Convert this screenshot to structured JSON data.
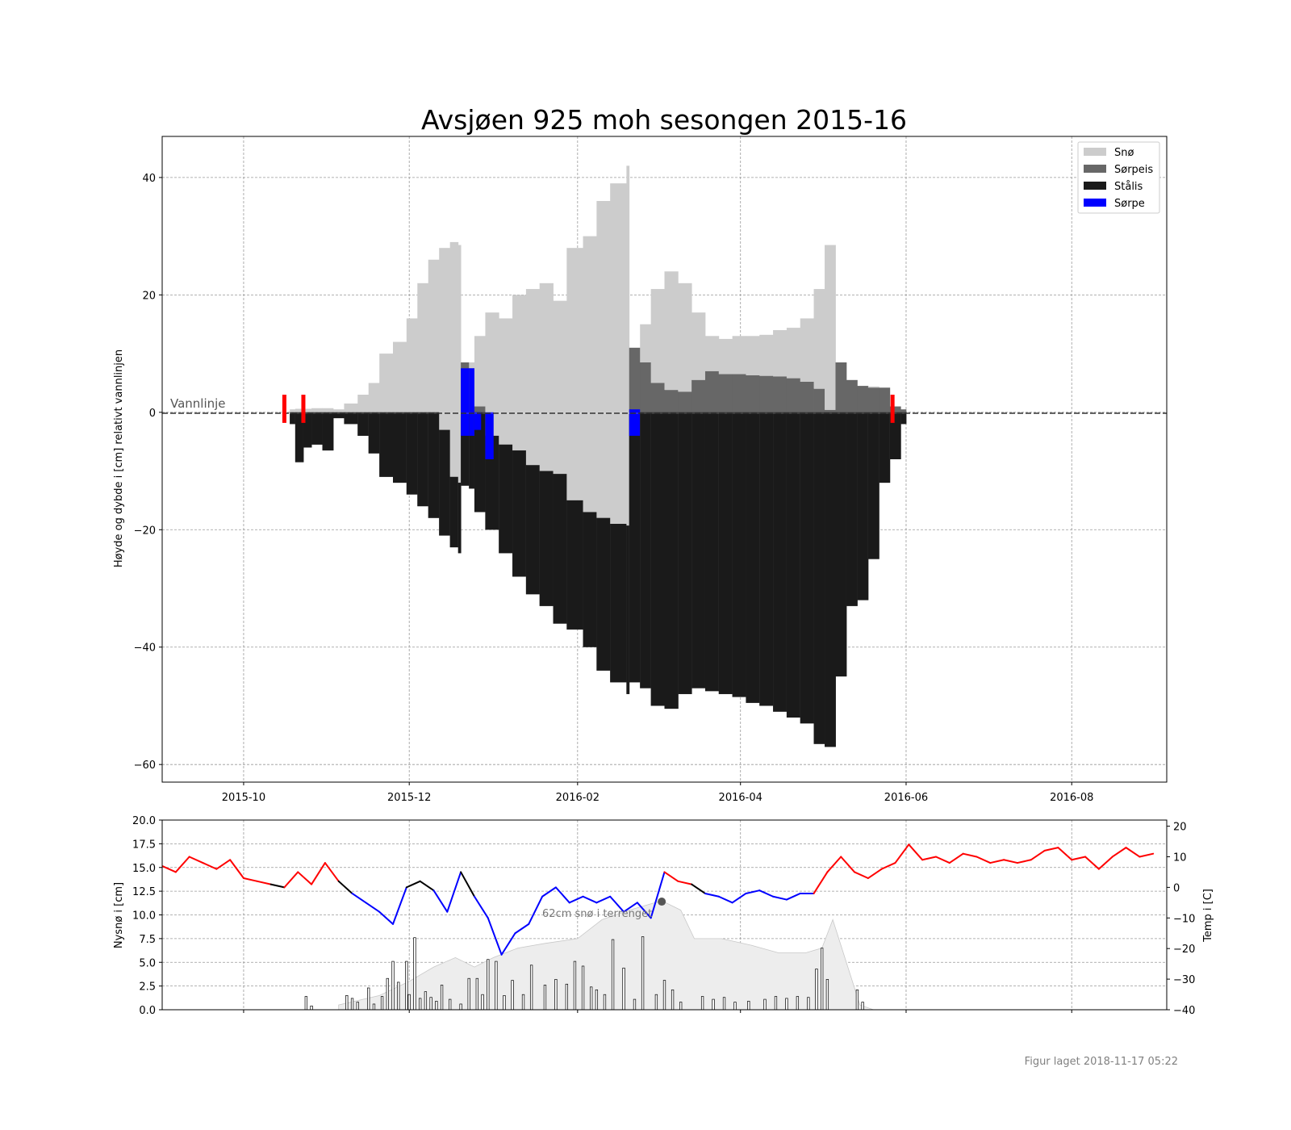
{
  "footer": "Figur laget 2018-11-17 05:22",
  "chart_data": [
    {
      "type": "area",
      "title": "Avsjøen 925 moh sesongen 2015-16",
      "ylabel": "Høyde og dybde i [cm] relativt vannlinjen",
      "xlim": [
        "2015-09-01",
        "2016-09-05"
      ],
      "ylim": [
        -63,
        47
      ],
      "x_ticks": [
        "2015-10",
        "2015-12",
        "2016-02",
        "2016-04",
        "2016-06",
        "2016-08"
      ],
      "y_ticks": [
        40,
        20,
        0,
        -20,
        -40,
        -60
      ],
      "grid": true,
      "legend_placement": "top-right",
      "annotation": "Vannlinje",
      "colors": {
        "sno": "#cccccc",
        "sorpeis": "#676767",
        "stalis": "#1a1a1a",
        "sorpe": "#0000ff",
        "markers": "#ff0000"
      },
      "legend": [
        "Snø",
        "Sørpeis",
        "Stålis",
        "Sørpe"
      ],
      "ice_markers": [
        "2015-10-16",
        "2015-10-23",
        "2016-05-27"
      ],
      "x": [
        "2015-10-18",
        "2015-10-20",
        "2015-10-23",
        "2015-10-26",
        "2015-10-30",
        "2015-11-03",
        "2015-11-07",
        "2015-11-12",
        "2015-11-16",
        "2015-11-20",
        "2015-11-25",
        "2015-11-30",
        "2015-12-04",
        "2015-12-08",
        "2015-12-12",
        "2015-12-16",
        "2015-12-19",
        "2015-12-20",
        "2015-12-23",
        "2015-12-25",
        "2015-12-29",
        "2016-01-03",
        "2016-01-08",
        "2016-01-13",
        "2016-01-18",
        "2016-01-23",
        "2016-01-28",
        "2016-02-03",
        "2016-02-08",
        "2016-02-13",
        "2016-02-19",
        "2016-02-20",
        "2016-02-24",
        "2016-02-28",
        "2016-03-04",
        "2016-03-09",
        "2016-03-14",
        "2016-03-19",
        "2016-03-24",
        "2016-03-29",
        "2016-04-03",
        "2016-04-08",
        "2016-04-13",
        "2016-04-18",
        "2016-04-23",
        "2016-04-28",
        "2016-05-02",
        "2016-05-06",
        "2016-05-10",
        "2016-05-14",
        "2016-05-18",
        "2016-05-22",
        "2016-05-26",
        "2016-05-30",
        "2016-06-01"
      ],
      "series": [
        {
          "name": "Snø",
          "values": [
            0.5,
            0.6,
            0.6,
            0.7,
            0.7,
            0.5,
            1.5,
            3,
            5,
            10,
            12,
            16,
            22,
            26,
            28,
            29,
            28.5,
            8,
            8.5,
            13,
            17,
            16,
            20,
            21,
            22,
            19,
            28,
            30,
            36,
            39,
            42,
            10.5,
            15,
            21,
            24,
            22,
            17,
            13,
            12.5,
            13,
            13,
            13.2,
            14,
            14.4,
            16,
            21,
            28.5,
            0.2,
            3,
            4.5,
            4.4,
            4.2,
            1,
            0.5,
            0
          ]
        },
        {
          "name": "Sørpeis",
          "values": [
            0,
            0,
            0,
            0,
            0,
            0,
            0,
            0,
            0,
            0,
            0,
            0,
            0,
            0,
            -3,
            -11,
            -12,
            8.5,
            7.5,
            1,
            -4,
            -5.5,
            -6.5,
            -9,
            -10,
            -10.5,
            -15,
            -17,
            -18,
            -19,
            -19.3,
            11,
            8.5,
            5,
            3.8,
            3.5,
            5.5,
            7,
            6.5,
            6.5,
            6.3,
            6.2,
            6.1,
            5.8,
            5.2,
            4,
            0.4,
            8.5,
            5.5,
            4.5,
            4.2,
            4.2,
            1,
            0.5,
            0
          ]
        },
        {
          "name": "Stålis",
          "values": [
            -2,
            -8.5,
            -6,
            -5.5,
            -6.5,
            -1,
            -2,
            -4,
            -7,
            -11,
            -12,
            -14,
            -16,
            -18,
            -21,
            -23,
            -24,
            -12.5,
            -13,
            -17,
            -20,
            -24,
            -28,
            -31,
            -33,
            -36,
            -37,
            -40,
            -44,
            -46,
            -48,
            -46,
            -47,
            -50,
            -50.5,
            -48,
            -47,
            -47.5,
            -48,
            -48.5,
            -49.5,
            -50,
            -51,
            -52,
            -53,
            -56.5,
            -57,
            -45,
            -33,
            -32,
            -25,
            -12,
            -8,
            -2,
            0
          ]
        },
        {
          "name": "Sørpe",
          "values": [
            0,
            0,
            0,
            0,
            0,
            0,
            0,
            0,
            0,
            0,
            0,
            0,
            0,
            0,
            0,
            0,
            0,
            7.5,
            7.5,
            -3,
            -8,
            0,
            0,
            0,
            0,
            0,
            0,
            0,
            0,
            0,
            0,
            0.5,
            0,
            0,
            0,
            0,
            0,
            0,
            0,
            0,
            0,
            0,
            0,
            0,
            0,
            0,
            0,
            0,
            0,
            0,
            0,
            0,
            0,
            0,
            0
          ]
        }
      ]
    },
    {
      "type": "bar",
      "ylabel": "Nysnø i [cm]",
      "y2label": "Temp i [C]",
      "ylim": [
        0,
        20
      ],
      "y2lim": [
        -40,
        22
      ],
      "y_ticks": [
        0.0,
        2.5,
        5.0,
        7.5,
        10.0,
        12.5,
        15.0,
        17.5,
        20.0
      ],
      "y2_ticks": [
        20,
        10,
        0,
        -10,
        -20,
        -30,
        -40
      ],
      "annotation": "62cm snø i terrenget",
      "annotation_date": "2016-03-03",
      "colors": {
        "warm": "#ff0000",
        "cold": "#0000ff",
        "neutral": "#000000",
        "snow_depth": "#ededed"
      },
      "temperature": {
        "x": [
          "2015-09-01",
          "2015-09-06",
          "2015-09-11",
          "2015-09-16",
          "2015-09-21",
          "2015-09-26",
          "2015-10-01",
          "2015-10-06",
          "2015-10-11",
          "2015-10-16",
          "2015-10-21",
          "2015-10-26",
          "2015-10-31",
          "2015-11-05",
          "2015-11-10",
          "2015-11-15",
          "2015-11-20",
          "2015-11-25",
          "2015-11-30",
          "2015-12-05",
          "2015-12-10",
          "2015-12-15",
          "2015-12-20",
          "2015-12-25",
          "2015-12-30",
          "2016-01-04",
          "2016-01-09",
          "2016-01-14",
          "2016-01-19",
          "2016-01-24",
          "2016-01-29",
          "2016-02-03",
          "2016-02-08",
          "2016-02-13",
          "2016-02-18",
          "2016-02-23",
          "2016-02-28",
          "2016-03-04",
          "2016-03-09",
          "2016-03-14",
          "2016-03-19",
          "2016-03-24",
          "2016-03-29",
          "2016-04-03",
          "2016-04-08",
          "2016-04-13",
          "2016-04-18",
          "2016-04-23",
          "2016-04-28",
          "2016-05-03",
          "2016-05-08",
          "2016-05-13",
          "2016-05-18",
          "2016-05-23",
          "2016-05-28",
          "2016-06-02",
          "2016-06-07",
          "2016-06-12",
          "2016-06-17",
          "2016-06-22",
          "2016-06-27",
          "2016-07-02",
          "2016-07-07",
          "2016-07-12",
          "2016-07-17",
          "2016-07-22",
          "2016-07-27",
          "2016-08-01",
          "2016-08-06",
          "2016-08-11",
          "2016-08-16",
          "2016-08-21",
          "2016-08-26",
          "2016-08-31"
        ],
        "values": [
          7,
          5,
          10,
          8,
          6,
          9,
          3,
          2,
          1,
          0,
          5,
          1,
          8,
          2,
          -2,
          -5,
          -8,
          -12,
          0,
          2,
          -1,
          -8,
          5,
          -3,
          -10,
          -22,
          -15,
          -12,
          -3,
          0,
          -5,
          -3,
          -5,
          -3,
          -8,
          -5,
          -10,
          5,
          2,
          1,
          -2,
          -3,
          -5,
          -2,
          -1,
          -3,
          -4,
          -2,
          -2,
          5,
          10,
          5,
          3,
          6,
          8,
          14,
          9,
          10,
          8,
          11,
          10,
          8,
          9,
          8,
          9,
          12,
          13,
          9,
          10,
          6,
          10,
          13,
          10,
          11
        ]
      },
      "snowfall": {
        "x": [
          "2015-10-24",
          "2015-10-26",
          "2015-11-08",
          "2015-11-10",
          "2015-11-12",
          "2015-11-16",
          "2015-11-18",
          "2015-11-21",
          "2015-11-23",
          "2015-11-25",
          "2015-11-27",
          "2015-11-30",
          "2015-12-01",
          "2015-12-03",
          "2015-12-05",
          "2015-12-07",
          "2015-12-09",
          "2015-12-11",
          "2015-12-13",
          "2015-12-16",
          "2015-12-20",
          "2015-12-23",
          "2015-12-26",
          "2015-12-28",
          "2015-12-30",
          "2016-01-02",
          "2016-01-05",
          "2016-01-08",
          "2016-01-12",
          "2016-01-15",
          "2016-01-20",
          "2016-01-24",
          "2016-01-28",
          "2016-01-31",
          "2016-02-03",
          "2016-02-06",
          "2016-02-08",
          "2016-02-11",
          "2016-02-14",
          "2016-02-18",
          "2016-02-22",
          "2016-02-25",
          "2016-03-01",
          "2016-03-04",
          "2016-03-07",
          "2016-03-10",
          "2016-03-18",
          "2016-03-22",
          "2016-03-26",
          "2016-03-30",
          "2016-04-04",
          "2016-04-10",
          "2016-04-14",
          "2016-04-18",
          "2016-04-22",
          "2016-04-26",
          "2016-04-29",
          "2016-05-01",
          "2016-05-03",
          "2016-05-14",
          "2016-05-16"
        ],
        "values": [
          1.4,
          0.4,
          1.5,
          1.2,
          0.8,
          2.3,
          0.6,
          1.4,
          3.3,
          5.1,
          2.9,
          5.1,
          1.6,
          7.6,
          1.2,
          1.9,
          1.3,
          0.9,
          2.6,
          1.1,
          0.6,
          3.3,
          3.3,
          1.6,
          5.3,
          5.1,
          1.5,
          3.1,
          1.6,
          4.7,
          2.6,
          3.2,
          2.7,
          5.1,
          4.6,
          2.4,
          2.1,
          1.6,
          7.4,
          4.4,
          1.1,
          7.7,
          1.6,
          3.1,
          2.1,
          0.8,
          1.4,
          1.1,
          1.3,
          0.8,
          0.9,
          1.1,
          1.4,
          1.2,
          1.4,
          1.3,
          4.3,
          6.5,
          3.2,
          2.1,
          0.8
        ]
      },
      "snow_depth": {
        "x": [
          "2015-11-05",
          "2015-11-20",
          "2015-12-01",
          "2015-12-10",
          "2015-12-18",
          "2015-12-25",
          "2016-01-01",
          "2016-01-10",
          "2016-01-20",
          "2016-02-01",
          "2016-02-10",
          "2016-02-20",
          "2016-03-03",
          "2016-03-10",
          "2016-03-15",
          "2016-03-25",
          "2016-04-05",
          "2016-04-15",
          "2016-04-25",
          "2016-05-01",
          "2016-05-05",
          "2016-05-10",
          "2016-05-15",
          "2016-05-20"
        ],
        "values": [
          0.5,
          1.5,
          3,
          4.5,
          5.5,
          4.5,
          5.5,
          6.5,
          7,
          7.5,
          9.5,
          10.5,
          11.5,
          10.5,
          7.5,
          7.5,
          6.8,
          6,
          6,
          6.5,
          9.5,
          5,
          0.5,
          0
        ]
      }
    }
  ]
}
